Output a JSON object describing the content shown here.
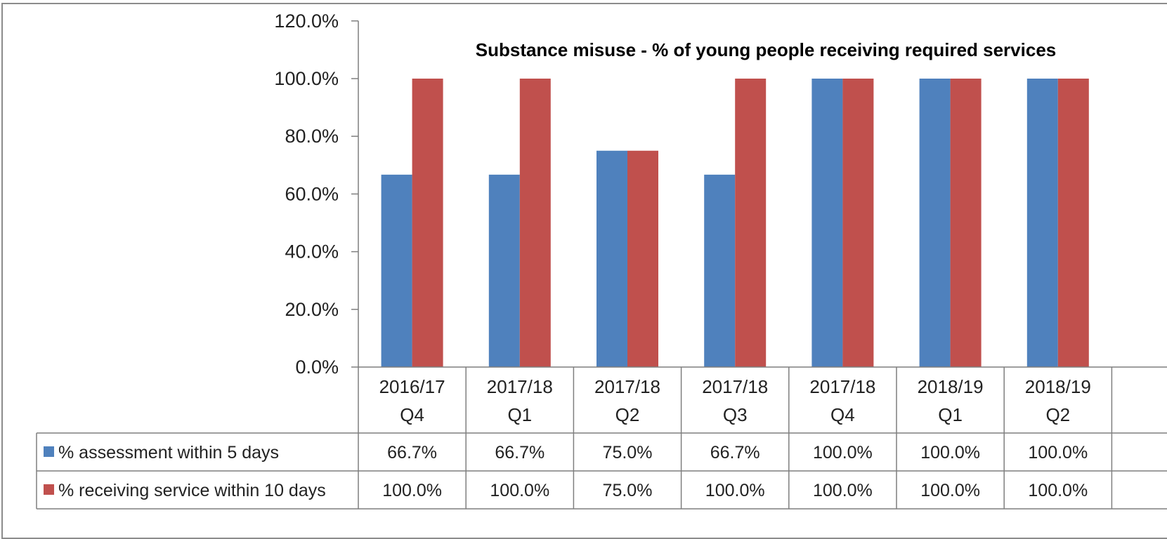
{
  "chart_data": {
    "type": "bar",
    "title": "Substance misuse - % of young people receiving required services",
    "categories": [
      [
        "2016/17",
        "Q4"
      ],
      [
        "2017/18",
        "Q1"
      ],
      [
        "2017/18",
        "Q2"
      ],
      [
        "2017/18",
        "Q3"
      ],
      [
        "2017/18",
        "Q4"
      ],
      [
        "2018/19",
        "Q1"
      ],
      [
        "2018/19",
        "Q2"
      ]
    ],
    "series": [
      {
        "name": "% assessment within 5 days",
        "color": "#4f81bd",
        "values": [
          66.7,
          66.7,
          75.0,
          66.7,
          100.0,
          100.0,
          100.0
        ],
        "labels": [
          "66.7%",
          "66.7%",
          "75.0%",
          "66.7%",
          "100.0%",
          "100.0%",
          "100.0%"
        ]
      },
      {
        "name": "% receiving service within 10 days",
        "color": "#c0504d",
        "values": [
          100.0,
          100.0,
          75.0,
          100.0,
          100.0,
          100.0,
          100.0
        ],
        "labels": [
          "100.0%",
          "100.0%",
          "75.0%",
          "100.0%",
          "100.0%",
          "100.0%",
          "100.0%"
        ]
      }
    ],
    "y_ticks": [
      "0.0%",
      "20.0%",
      "40.0%",
      "60.0%",
      "80.0%",
      "100.0%",
      "120.0%"
    ],
    "ylim": [
      0,
      120
    ],
    "grid": false,
    "legend": "data-table"
  }
}
